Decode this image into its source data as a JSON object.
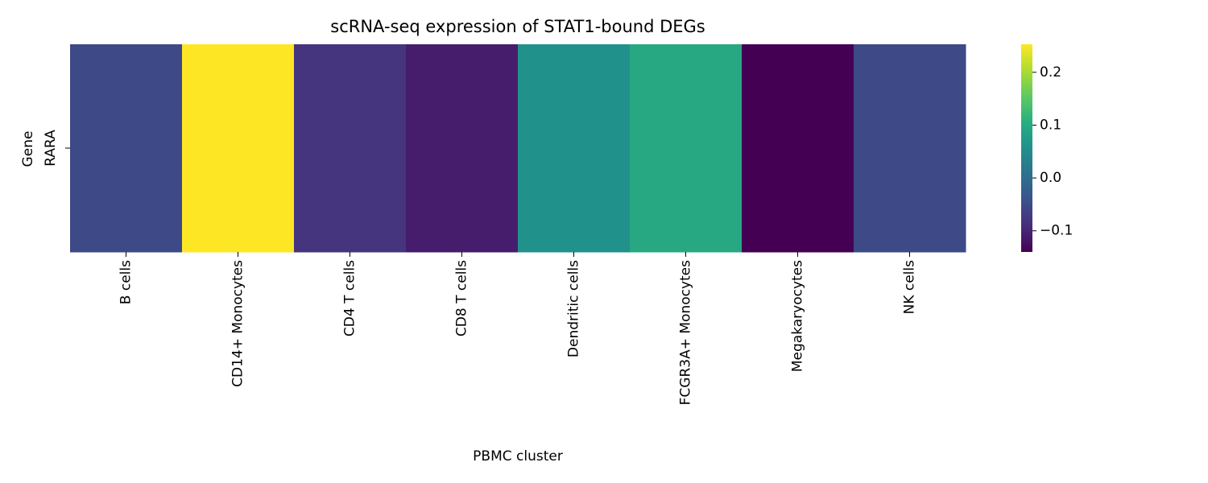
{
  "chart_data": {
    "type": "heatmap",
    "title": "scRNA-seq expression of STAT1-bound DEGs",
    "xlabel": "PBMC cluster",
    "ylabel": "Gene",
    "x_categories": [
      "B cells",
      "CD14+ Monocytes",
      "CD4 T cells",
      "CD8 T cells",
      "Dendritic cells",
      "FCGR3A+ Monocytes",
      "Megakaryocytes",
      "NK cells"
    ],
    "y_categories": [
      "RARA"
    ],
    "values": [
      [
        -0.054,
        0.253,
        -0.081,
        -0.109,
        0.056,
        0.096,
        -0.14,
        -0.054
      ]
    ],
    "colormap": "viridis",
    "clim": [
      -0.14,
      0.253
    ],
    "cticks": [
      {
        "value": -0.1,
        "label": "−0.1"
      },
      {
        "value": 0,
        "label": "0.0"
      },
      0.1,
      0.2
    ]
  }
}
